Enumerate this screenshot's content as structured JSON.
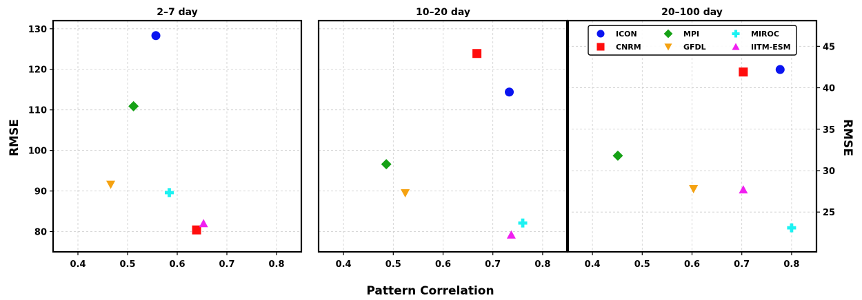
{
  "chart_data": {
    "type": "scatter",
    "xlabel": "Pattern Correlation",
    "ylabel_left": "RMSE",
    "ylabel_right": "RMSE",
    "grid": true,
    "legend_placement": "top-right",
    "series_styles": [
      {
        "name": "ICON",
        "marker": "circle",
        "color": "#0a14f0"
      },
      {
        "name": "CNRM",
        "marker": "square",
        "color": "#ff0d0d"
      },
      {
        "name": "MPI",
        "marker": "diamond",
        "color": "#16a116"
      },
      {
        "name": "GFDL",
        "marker": "triangle-down",
        "color": "#f5a211"
      },
      {
        "name": "MIROC",
        "marker": "plus",
        "color": "#1cf2f2"
      },
      {
        "name": "IITM-ESM",
        "marker": "triangle-up",
        "color": "#f01ff0"
      }
    ],
    "panels": [
      {
        "title": "2–7 day",
        "xlim": [
          0.35,
          0.85
        ],
        "xticks": [
          0.4,
          0.5,
          0.6,
          0.7,
          0.8
        ],
        "ylim": [
          75,
          132
        ],
        "yticks": [
          80,
          90,
          100,
          110,
          120,
          130
        ],
        "y_axis_side": "left",
        "points": [
          {
            "series": "ICON",
            "x": 0.557,
            "y": 128.3
          },
          {
            "series": "MPI",
            "x": 0.512,
            "y": 110.9
          },
          {
            "series": "GFDL",
            "x": 0.466,
            "y": 91.6
          },
          {
            "series": "MIROC",
            "x": 0.584,
            "y": 89.6
          },
          {
            "series": "CNRM",
            "x": 0.639,
            "y": 80.4
          },
          {
            "series": "IITM-ESM",
            "x": 0.653,
            "y": 82.0
          }
        ]
      },
      {
        "title": "10–20 day",
        "xlim": [
          0.35,
          0.85
        ],
        "xticks": [
          0.4,
          0.5,
          0.6,
          0.7,
          0.8
        ],
        "ylim": [
          75,
          132
        ],
        "yticks": [],
        "y_axis_side": "none",
        "points": [
          {
            "series": "CNRM",
            "x": 0.668,
            "y": 123.9
          },
          {
            "series": "ICON",
            "x": 0.733,
            "y": 114.4
          },
          {
            "series": "MPI",
            "x": 0.486,
            "y": 96.6
          },
          {
            "series": "GFDL",
            "x": 0.524,
            "y": 89.5
          },
          {
            "series": "MIROC",
            "x": 0.76,
            "y": 82.1
          },
          {
            "series": "IITM-ESM",
            "x": 0.737,
            "y": 79.2
          }
        ]
      },
      {
        "title": "20–100 day",
        "xlim": [
          0.35,
          0.85
        ],
        "xticks": [
          0.4,
          0.5,
          0.6,
          0.7,
          0.8
        ],
        "ylim": [
          20.2,
          48.1
        ],
        "yticks": [
          25,
          30,
          35,
          40,
          45
        ],
        "y_axis_side": "right",
        "points": [
          {
            "series": "ICON",
            "x": 0.777,
            "y": 42.2
          },
          {
            "series": "CNRM",
            "x": 0.703,
            "y": 41.9
          },
          {
            "series": "MPI",
            "x": 0.451,
            "y": 31.8
          },
          {
            "series": "GFDL",
            "x": 0.603,
            "y": 27.8
          },
          {
            "series": "IITM-ESM",
            "x": 0.703,
            "y": 27.7
          },
          {
            "series": "MIROC",
            "x": 0.8,
            "y": 23.1
          }
        ]
      }
    ]
  }
}
